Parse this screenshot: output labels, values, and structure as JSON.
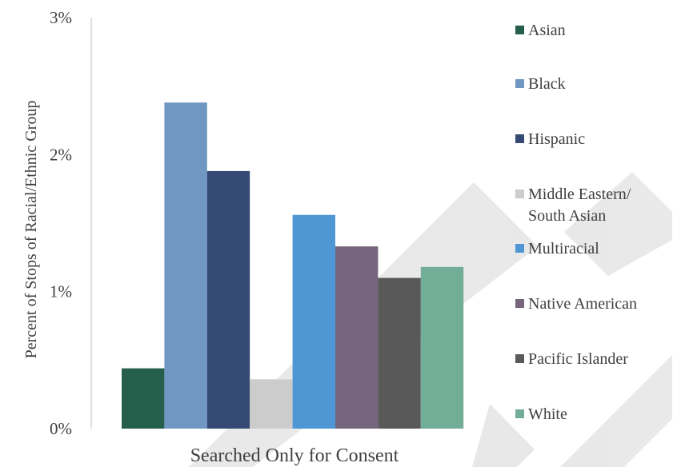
{
  "chart_data": {
    "type": "bar",
    "categories": [
      "Searched Only for Consent"
    ],
    "xlabel": "Searched Only for Consent",
    "ylabel": "Percent of Stops of  Racial/Ethnic Group",
    "ylim": [
      0,
      3
    ],
    "yticks": [
      "0%",
      "1%",
      "2%",
      "3%"
    ],
    "grid": false,
    "legend": "right",
    "series": [
      {
        "name": "Asian",
        "values": [
          0.44
        ],
        "color": "#255e4b"
      },
      {
        "name": "Black",
        "values": [
          2.38
        ],
        "color": "#7097c2"
      },
      {
        "name": "Hispanic",
        "values": [
          1.88
        ],
        "color": "#344a74"
      },
      {
        "name": "Middle Eastern/ South Asian",
        "values": [
          0.36
        ],
        "color": "#cccccc"
      },
      {
        "name": "Multiracial",
        "values": [
          1.56
        ],
        "color": "#4e96d4"
      },
      {
        "name": "Native American",
        "values": [
          1.33
        ],
        "color": "#75657d"
      },
      {
        "name": "Pacific Islander",
        "values": [
          1.1
        ],
        "color": "#595959"
      },
      {
        "name": "White",
        "values": [
          1.18
        ],
        "color": "#72ad98"
      }
    ]
  }
}
